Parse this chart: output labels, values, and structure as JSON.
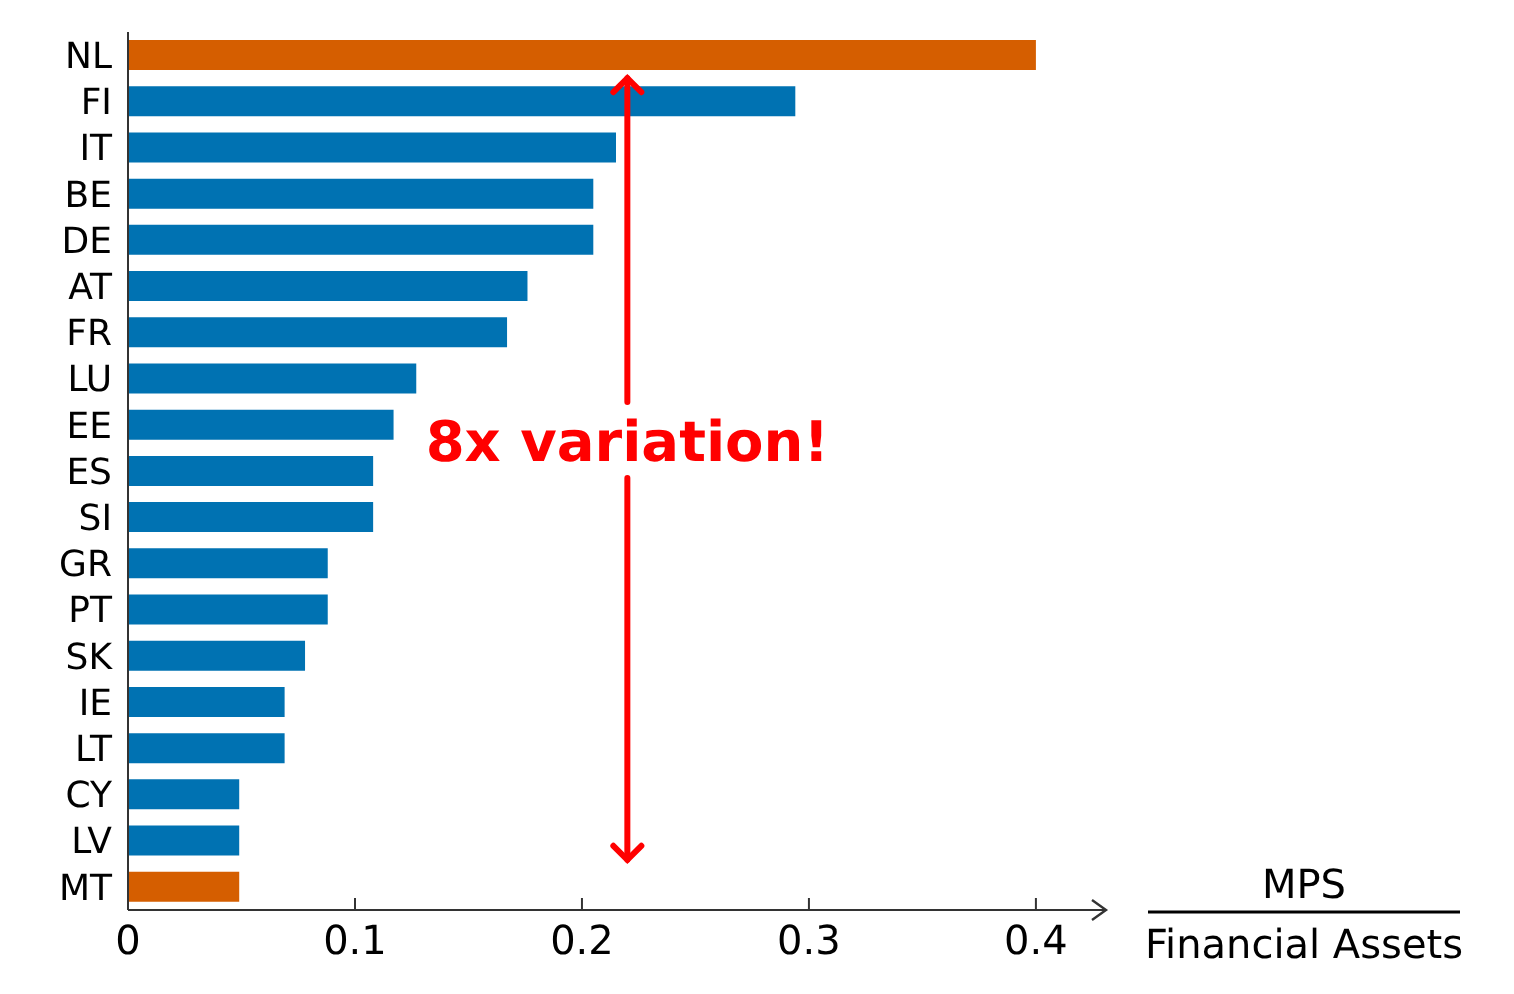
{
  "chart_data": {
    "type": "bar",
    "orientation": "horizontal",
    "categories": [
      "NL",
      "FI",
      "IT",
      "BE",
      "DE",
      "AT",
      "FR",
      "LU",
      "EE",
      "ES",
      "SI",
      "GR",
      "PT",
      "SK",
      "IE",
      "LT",
      "CY",
      "LV",
      "MT"
    ],
    "values": [
      0.4,
      0.294,
      0.215,
      0.205,
      0.205,
      0.176,
      0.167,
      0.127,
      0.117,
      0.108,
      0.108,
      0.088,
      0.088,
      0.078,
      0.069,
      0.069,
      0.049,
      0.049,
      0.049
    ],
    "colors": [
      "#d55e00",
      "#0072b2",
      "#0072b2",
      "#0072b2",
      "#0072b2",
      "#0072b2",
      "#0072b2",
      "#0072b2",
      "#0072b2",
      "#0072b2",
      "#0072b2",
      "#0072b2",
      "#0072b2",
      "#0072b2",
      "#0072b2",
      "#0072b2",
      "#0072b2",
      "#0072b2",
      "#d55e00"
    ],
    "xlabel": "MPS\nFinancial Assets",
    "xlim": [
      0,
      0.43
    ],
    "xticks": [
      0,
      0.1,
      0.2,
      0.3,
      0.4
    ],
    "annotations": [
      {
        "text": "8x variation!",
        "x": 0.22,
        "y": "NL"
      }
    ],
    "grid": false
  }
}
